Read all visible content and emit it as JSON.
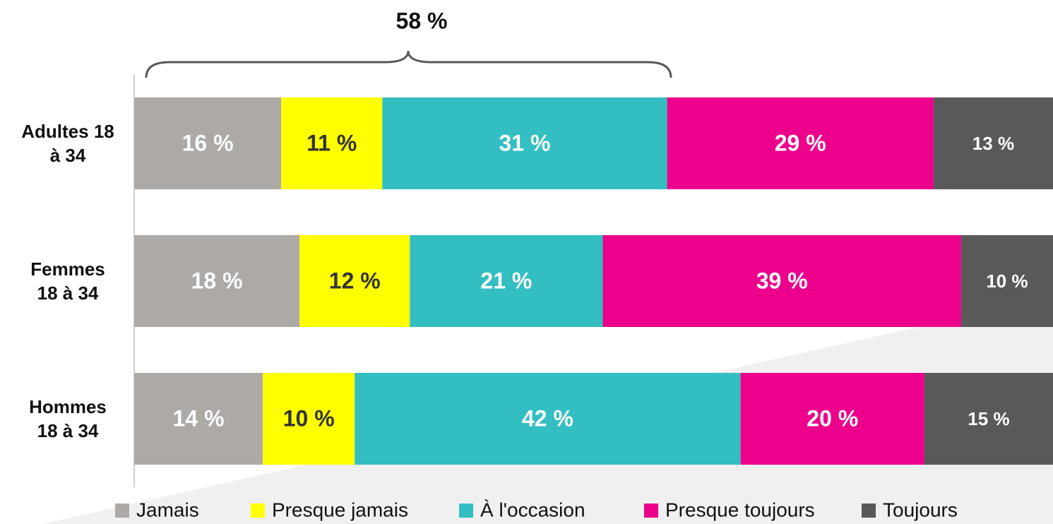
{
  "chart_data": {
    "type": "stacked-barh",
    "annotation": "58 %",
    "categories": [
      "Adultes 18 à 34",
      "Femmes 18 à 34",
      "Hommes 18 à 34"
    ],
    "xlim": [
      0,
      100
    ],
    "series": [
      {
        "name": "Jamais",
        "color": "#ada9a7",
        "label_color": "#ffffff",
        "values": [
          16,
          18,
          14
        ],
        "value_labels": [
          "16 %",
          "18 %",
          "14 %"
        ]
      },
      {
        "name": "Presque jamais",
        "color": "#ffff00",
        "label_color": "#333333",
        "values": [
          11,
          12,
          10
        ],
        "value_labels": [
          "11 %",
          "12 %",
          "10 %"
        ]
      },
      {
        "name": "À l'occasion",
        "color": "#33bfc1",
        "label_color": "#ffffff",
        "values": [
          31,
          21,
          42
        ],
        "value_labels": [
          "31 %",
          "21 %",
          "42 %"
        ]
      },
      {
        "name": "Presque toujours",
        "color": "#ec008c",
        "label_color": "#ffffff",
        "values": [
          29,
          39,
          20
        ],
        "value_labels": [
          "29 %",
          "39 %",
          "20 %"
        ]
      },
      {
        "name": "Toujours",
        "color": "#595959",
        "label_color": "#ffffff",
        "values": [
          13,
          10,
          15
        ],
        "value_labels": [
          "13 %",
          "10 %",
          "15 %"
        ]
      }
    ]
  }
}
